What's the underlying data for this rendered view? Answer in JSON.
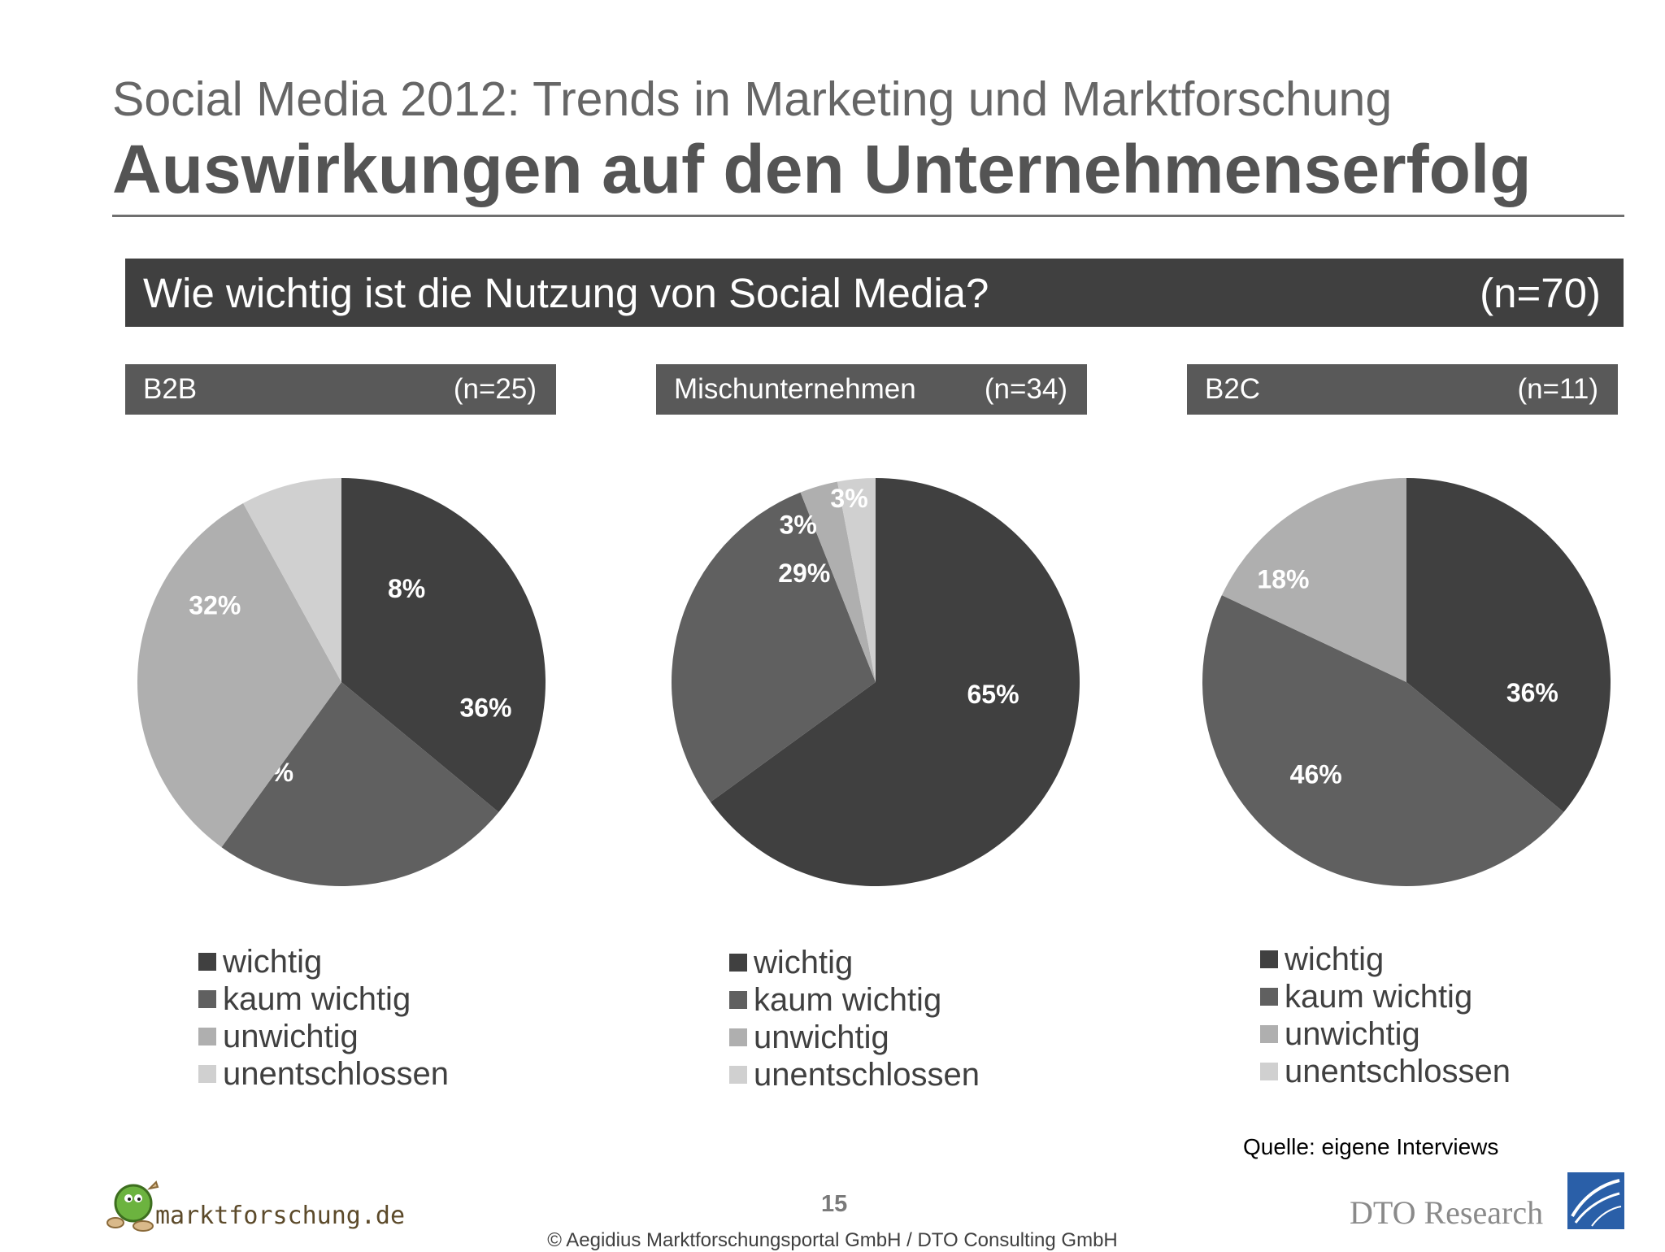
{
  "header": {
    "subtitle": "Social Media 2012: Trends in Marketing und Marktforschung",
    "title": "Auswirkungen auf den Unternehmenserfolg"
  },
  "question": {
    "text": "Wie wichtig ist die Nutzung von Social Media?",
    "n": "(n=70)"
  },
  "colors": {
    "wichtig": "#404040",
    "kaum wichtig": "#606060",
    "unwichtig": "#afafaf",
    "unentschlossen": "#d0d0d0"
  },
  "chart_data": [
    {
      "type": "pie",
      "title": "B2B",
      "n": "(n=25)",
      "categories": [
        "wichtig",
        "kaum wichtig",
        "unwichtig",
        "unentschlossen"
      ],
      "values": [
        36,
        24,
        32,
        8
      ],
      "labels": [
        "36%",
        "24%",
        "32%",
        "8%"
      ],
      "legend_placement": "bottom"
    },
    {
      "type": "pie",
      "title": "Mischunternehmen",
      "n": "(n=34)",
      "categories": [
        "wichtig",
        "kaum wichtig",
        "unwichtig",
        "unentschlossen"
      ],
      "values": [
        65,
        29,
        3,
        3
      ],
      "labels": [
        "65%",
        "29%",
        "3%",
        "3%"
      ],
      "legend_placement": "bottom"
    },
    {
      "type": "pie",
      "title": "B2C",
      "n": "(n=11)",
      "categories": [
        "wichtig",
        "kaum wichtig",
        "unwichtig"
      ],
      "values": [
        36,
        46,
        18
      ],
      "labels": [
        "36%",
        "46%",
        "18%"
      ],
      "legend_placement": "bottom"
    }
  ],
  "legend": [
    "wichtig",
    "kaum wichtig",
    "unwichtig",
    "unentschlossen"
  ],
  "footer": {
    "source": "Quelle: eigene Interviews",
    "page_number": "15",
    "copyright": "© Aegidius Marktforschungsportal GmbH / DTO Consulting GmbH",
    "logo_left": "marktforschung.de",
    "logo_right": "DTO Research"
  }
}
